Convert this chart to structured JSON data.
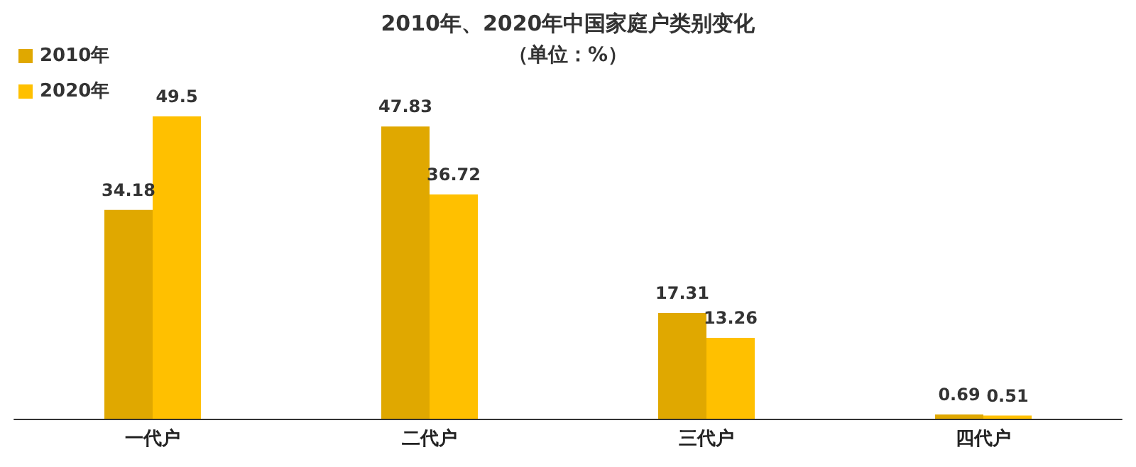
{
  "chart_data": {
    "type": "bar",
    "title": "2010年、2020年中国家庭户类别变化",
    "subtitle": "（单位：%）",
    "categories": [
      "一代户",
      "二代户",
      "三代户",
      "四代户"
    ],
    "series": [
      {
        "name": "2010年",
        "color": "#e0a800",
        "values": [
          34.18,
          47.83,
          17.31,
          0.69
        ]
      },
      {
        "name": "2020年",
        "color": "#ffc000",
        "values": [
          49.5,
          36.72,
          13.26,
          0.51
        ]
      }
    ],
    "data_labels": true,
    "legend": "top left",
    "grid": false
  }
}
